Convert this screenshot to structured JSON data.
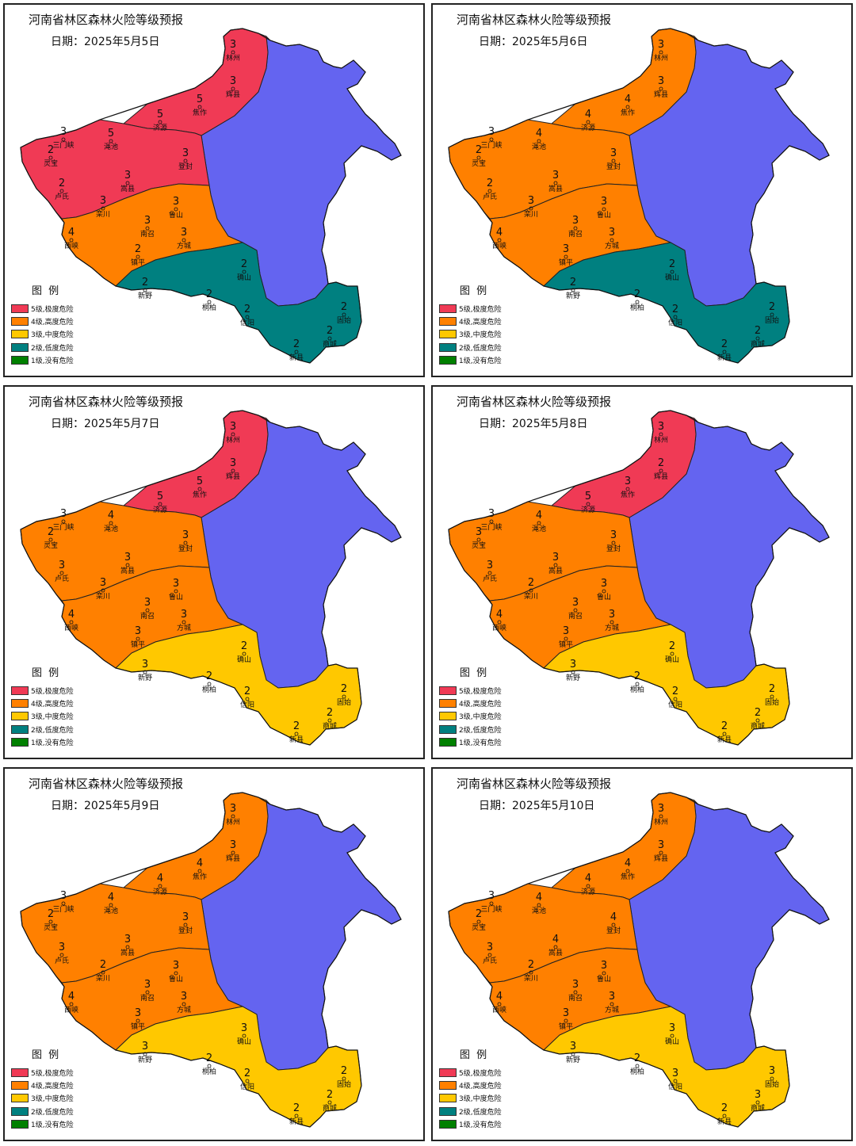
{
  "colors": {
    "5": "#f03a55",
    "4": "#ff8000",
    "3": "#ffc800",
    "2": "#008080",
    "1": "#008000",
    "east": "#6464f0"
  },
  "legend": {
    "title": "图  例",
    "items": [
      {
        "level": "5",
        "label": "5级,极度危险"
      },
      {
        "level": "4",
        "label": "4级,高度危险"
      },
      {
        "level": "3",
        "label": "3级,中度危险"
      },
      {
        "level": "2",
        "label": "2级,低度危险"
      },
      {
        "level": "1",
        "label": "1级,没有危险"
      }
    ]
  },
  "maps": [
    {
      "title": "河南省林区森林火险等级预报",
      "date": "日期：2025年5月5日",
      "zones": {
        "north": "5",
        "west": "5",
        "central": "4",
        "south": "2"
      },
      "cities": [
        {
          "name": "林州",
          "level": "3"
        },
        {
          "name": "辉县",
          "level": "3"
        },
        {
          "name": "焦作",
          "level": "5"
        },
        {
          "name": "济源",
          "level": "5"
        },
        {
          "name": "三门峡",
          "level": "3"
        },
        {
          "name": "渑池",
          "level": "5"
        },
        {
          "name": "登封",
          "level": "3"
        },
        {
          "name": "灵宝",
          "level": "2"
        },
        {
          "name": "嵩县",
          "level": "3"
        },
        {
          "name": "卢氏",
          "level": "2"
        },
        {
          "name": "栾川",
          "level": "3"
        },
        {
          "name": "鲁山",
          "level": "3"
        },
        {
          "name": "南召",
          "level": "3"
        },
        {
          "name": "西峡",
          "level": "4"
        },
        {
          "name": "方城",
          "level": "3"
        },
        {
          "name": "镇平",
          "level": "2"
        },
        {
          "name": "确山",
          "level": "2"
        },
        {
          "name": "新野",
          "level": "2"
        },
        {
          "name": "桐柏",
          "level": "2"
        },
        {
          "name": "信阳",
          "level": "2"
        },
        {
          "name": "固始",
          "level": "2"
        },
        {
          "name": "商城",
          "level": "2"
        },
        {
          "name": "新县",
          "level": "2"
        }
      ]
    },
    {
      "title": "河南省林区森林火险等级预报",
      "date": "日期：2025年5月6日",
      "zones": {
        "north": "4",
        "west": "4",
        "central": "4",
        "south": "2"
      },
      "cities": [
        {
          "name": "林州",
          "level": "3"
        },
        {
          "name": "辉县",
          "level": "3"
        },
        {
          "name": "焦作",
          "level": "4"
        },
        {
          "name": "济源",
          "level": "4"
        },
        {
          "name": "三门峡",
          "level": "3"
        },
        {
          "name": "渑池",
          "level": "4"
        },
        {
          "name": "登封",
          "level": "3"
        },
        {
          "name": "灵宝",
          "level": "2"
        },
        {
          "name": "嵩县",
          "level": "3"
        },
        {
          "name": "卢氏",
          "level": "2"
        },
        {
          "name": "栾川",
          "level": "3"
        },
        {
          "name": "鲁山",
          "level": "3"
        },
        {
          "name": "南召",
          "level": "3"
        },
        {
          "name": "西峡",
          "level": "4"
        },
        {
          "name": "方城",
          "level": "3"
        },
        {
          "name": "镇平",
          "level": "3"
        },
        {
          "name": "确山",
          "level": "2"
        },
        {
          "name": "新野",
          "level": "2"
        },
        {
          "name": "桐柏",
          "level": "2"
        },
        {
          "name": "信阳",
          "level": "2"
        },
        {
          "name": "固始",
          "level": "2"
        },
        {
          "name": "商城",
          "level": "2"
        },
        {
          "name": "新县",
          "level": "2"
        }
      ]
    },
    {
      "title": "河南省林区森林火险等级预报",
      "date": "日期：2025年5月7日",
      "zones": {
        "north": "5",
        "west": "4",
        "central": "4",
        "south": "3"
      },
      "cities": [
        {
          "name": "林州",
          "level": "3"
        },
        {
          "name": "辉县",
          "level": "3"
        },
        {
          "name": "焦作",
          "level": "5"
        },
        {
          "name": "济源",
          "level": "5"
        },
        {
          "name": "三门峡",
          "level": "3"
        },
        {
          "name": "渑池",
          "level": "4"
        },
        {
          "name": "登封",
          "level": "3"
        },
        {
          "name": "灵宝",
          "level": "2"
        },
        {
          "name": "嵩县",
          "level": "3"
        },
        {
          "name": "卢氏",
          "level": "3"
        },
        {
          "name": "栾川",
          "level": "3"
        },
        {
          "name": "鲁山",
          "level": "3"
        },
        {
          "name": "南召",
          "level": "3"
        },
        {
          "name": "西峡",
          "level": "4"
        },
        {
          "name": "方城",
          "level": "3"
        },
        {
          "name": "镇平",
          "level": "3"
        },
        {
          "name": "确山",
          "level": "2"
        },
        {
          "name": "新野",
          "level": "3"
        },
        {
          "name": "桐柏",
          "level": "2"
        },
        {
          "name": "信阳",
          "level": "2"
        },
        {
          "name": "固始",
          "level": "2"
        },
        {
          "name": "商城",
          "level": "2"
        },
        {
          "name": "新县",
          "level": "2"
        }
      ]
    },
    {
      "title": "河南省林区森林火险等级预报",
      "date": "日期：2025年5月8日",
      "zones": {
        "north": "5",
        "west": "4",
        "central": "4",
        "south": "3"
      },
      "cities": [
        {
          "name": "林州",
          "level": "3"
        },
        {
          "name": "辉县",
          "level": "2"
        },
        {
          "name": "焦作",
          "level": "3"
        },
        {
          "name": "济源",
          "level": "5"
        },
        {
          "name": "三门峡",
          "level": "3"
        },
        {
          "name": "渑池",
          "level": "4"
        },
        {
          "name": "登封",
          "level": "3"
        },
        {
          "name": "灵宝",
          "level": "3"
        },
        {
          "name": "嵩县",
          "level": "3"
        },
        {
          "name": "卢氏",
          "level": "3"
        },
        {
          "name": "栾川",
          "level": "2"
        },
        {
          "name": "鲁山",
          "level": "3"
        },
        {
          "name": "南召",
          "level": "3"
        },
        {
          "name": "西峡",
          "level": "4"
        },
        {
          "name": "方城",
          "level": "3"
        },
        {
          "name": "镇平",
          "level": "3"
        },
        {
          "name": "确山",
          "level": "2"
        },
        {
          "name": "新野",
          "level": "3"
        },
        {
          "name": "桐柏",
          "level": "2"
        },
        {
          "name": "信阳",
          "level": "2"
        },
        {
          "name": "固始",
          "level": "2"
        },
        {
          "name": "商城",
          "level": "2"
        },
        {
          "name": "新县",
          "level": "2"
        }
      ]
    },
    {
      "title": "河南省林区森林火险等级预报",
      "date": "日期：2025年5月9日",
      "zones": {
        "north": "4",
        "west": "4",
        "central": "4",
        "south": "3"
      },
      "cities": [
        {
          "name": "林州",
          "level": "3"
        },
        {
          "name": "辉县",
          "level": "3"
        },
        {
          "name": "焦作",
          "level": "4"
        },
        {
          "name": "济源",
          "level": "4"
        },
        {
          "name": "三门峡",
          "level": "3"
        },
        {
          "name": "渑池",
          "level": "4"
        },
        {
          "name": "登封",
          "level": "3"
        },
        {
          "name": "灵宝",
          "level": "2"
        },
        {
          "name": "嵩县",
          "level": "3"
        },
        {
          "name": "卢氏",
          "level": "3"
        },
        {
          "name": "栾川",
          "level": "2"
        },
        {
          "name": "鲁山",
          "level": "3"
        },
        {
          "name": "南召",
          "level": "3"
        },
        {
          "name": "西峡",
          "level": "4"
        },
        {
          "name": "方城",
          "level": "3"
        },
        {
          "name": "镇平",
          "level": "3"
        },
        {
          "name": "确山",
          "level": "3"
        },
        {
          "name": "新野",
          "level": "3"
        },
        {
          "name": "桐柏",
          "level": "2"
        },
        {
          "name": "信阳",
          "level": "2"
        },
        {
          "name": "固始",
          "level": "2"
        },
        {
          "name": "商城",
          "level": "2"
        },
        {
          "name": "新县",
          "level": "2"
        }
      ]
    },
    {
      "title": "河南省林区森林火险等级预报",
      "date": "日期：2025年5月10日",
      "zones": {
        "north": "4",
        "west": "4",
        "central": "4",
        "south": "3"
      },
      "cities": [
        {
          "name": "林州",
          "level": "3"
        },
        {
          "name": "辉县",
          "level": "3"
        },
        {
          "name": "焦作",
          "level": "4"
        },
        {
          "name": "济源",
          "level": "4"
        },
        {
          "name": "三门峡",
          "level": "3"
        },
        {
          "name": "渑池",
          "level": "4"
        },
        {
          "name": "登封",
          "level": "4"
        },
        {
          "name": "灵宝",
          "level": "2"
        },
        {
          "name": "嵩县",
          "level": "4"
        },
        {
          "name": "卢氏",
          "level": "3"
        },
        {
          "name": "栾川",
          "level": "2"
        },
        {
          "name": "鲁山",
          "level": "3"
        },
        {
          "name": "南召",
          "level": "3"
        },
        {
          "name": "西峡",
          "level": "4"
        },
        {
          "name": "方城",
          "level": "3"
        },
        {
          "name": "镇平",
          "level": "3"
        },
        {
          "name": "确山",
          "level": "3"
        },
        {
          "name": "新野",
          "level": "3"
        },
        {
          "name": "桐柏",
          "level": "2"
        },
        {
          "name": "信阳",
          "level": "3"
        },
        {
          "name": "固始",
          "level": "3"
        },
        {
          "name": "商城",
          "level": "3"
        },
        {
          "name": "新县",
          "level": "2"
        }
      ]
    }
  ]
}
